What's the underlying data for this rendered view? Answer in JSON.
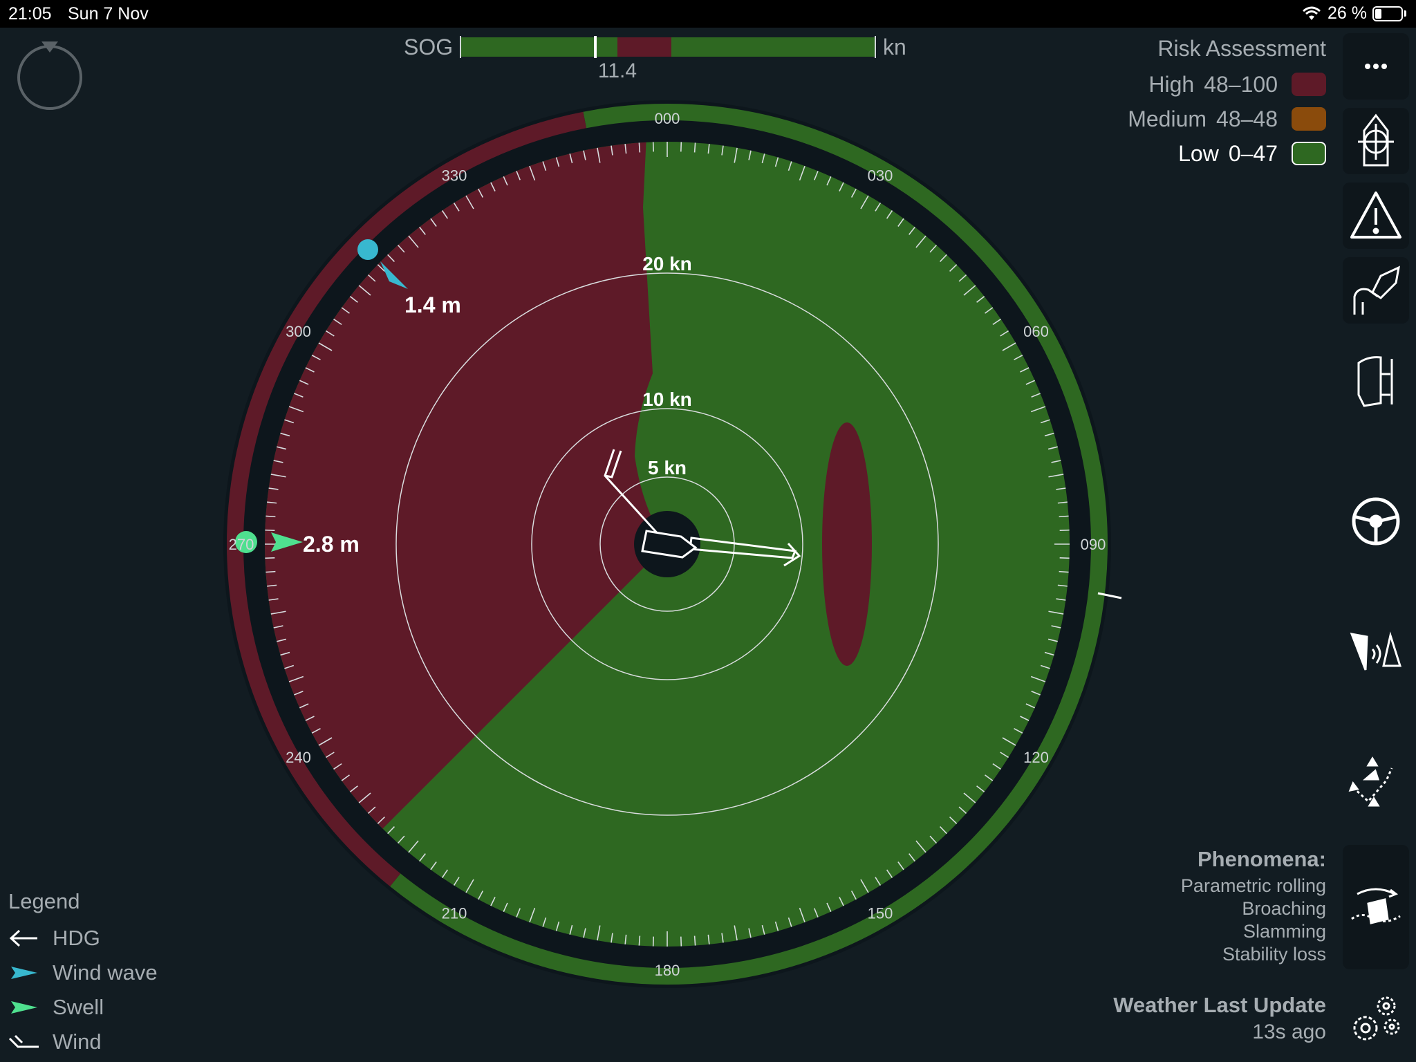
{
  "status_bar": {
    "time": "21:05",
    "date": "Sun 7 Nov",
    "battery_percent": "26 %",
    "battery_level": 0.26
  },
  "sog": {
    "label": "SOG",
    "unit": "kn",
    "value": "11.4"
  },
  "risk_assessment": {
    "title": "Risk Assessment",
    "levels": [
      {
        "name": "High",
        "range": "48–100",
        "color": "#5e1a28"
      },
      {
        "name": "Medium",
        "range": "48–48",
        "color": "#8a4b0c"
      },
      {
        "name": "Low",
        "range": "0–47",
        "color": "#2e6821"
      }
    ],
    "active_level": "Low"
  },
  "dial": {
    "heading_labels": [
      "000",
      "030",
      "060",
      "090",
      "120",
      "150",
      "180",
      "210",
      "240",
      "270",
      "300",
      "330"
    ],
    "speed_rings": [
      "5 kn",
      "10 kn",
      "20 kn"
    ],
    "wind_wave": {
      "height": "1.4 m",
      "direction_deg": 318,
      "color": "#38b8cf"
    },
    "swell": {
      "height": "2.8 m",
      "direction_deg": 270,
      "color": "#4fe08f"
    },
    "heading_deg": 95,
    "wind_direction_deg": 315,
    "colors": {
      "high": "#5e1a28",
      "low": "#2e6821",
      "background": "#121c22",
      "ring_dark": "#0d161c"
    }
  },
  "phenomena": {
    "title": "Phenomena:",
    "items": [
      "Parametric rolling",
      "Broaching",
      "Slamming",
      "Stability loss"
    ]
  },
  "weather": {
    "title": "Weather Last Update",
    "age": "13s ago"
  },
  "legend": {
    "title": "Legend",
    "items": [
      {
        "label": "HDG",
        "icon": "hdg-arrow-icon"
      },
      {
        "label": "Wind wave",
        "icon": "wind-wave-icon"
      },
      {
        "label": "Swell",
        "icon": "swell-icon"
      },
      {
        "label": "Wind",
        "icon": "wind-barb-icon"
      }
    ]
  },
  "toolbar": {
    "tools": [
      "more-icon",
      "target-icon",
      "warning-icon",
      "hand-ship-icon",
      "rudder-icon",
      "steering-wheel-icon",
      "sensor-icon",
      "route-icon",
      "rolling-icon",
      "settings-icon"
    ]
  }
}
